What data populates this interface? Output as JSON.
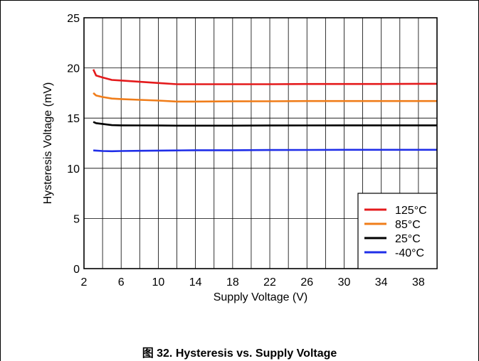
{
  "caption": "图 32. Hysteresis vs. Supply Voltage",
  "chart_data": {
    "type": "line",
    "title": "",
    "xlabel": "Supply Voltage (V)",
    "ylabel": "Hysteresis Voltage (mV)",
    "xlim": [
      2,
      40
    ],
    "ylim": [
      0,
      25
    ],
    "xticks": [
      2,
      6,
      10,
      14,
      18,
      22,
      26,
      30,
      34,
      38
    ],
    "yticks": [
      0,
      5,
      10,
      15,
      20,
      25
    ],
    "grid": true,
    "legend_position": "bottom-right",
    "series": [
      {
        "name": "125°C",
        "color": "#e41a1c",
        "x": [
          3,
          3.3,
          4,
          5,
          6,
          8,
          10,
          12,
          14,
          18,
          22,
          26,
          30,
          34,
          38,
          40
        ],
        "y": [
          19.85,
          19.25,
          19.05,
          18.8,
          18.75,
          18.62,
          18.5,
          18.38,
          18.38,
          18.38,
          18.38,
          18.4,
          18.4,
          18.4,
          18.42,
          18.42
        ]
      },
      {
        "name": "85°C",
        "color": "#f07d1a",
        "x": [
          3,
          3.3,
          4,
          5,
          6,
          8,
          10,
          12,
          14,
          18,
          22,
          26,
          30,
          34,
          38,
          40
        ],
        "y": [
          17.5,
          17.25,
          17.1,
          16.95,
          16.9,
          16.82,
          16.75,
          16.65,
          16.65,
          16.67,
          16.68,
          16.7,
          16.7,
          16.7,
          16.7,
          16.7
        ]
      },
      {
        "name": "25°C",
        "color": "#000000",
        "x": [
          3,
          3.3,
          4,
          5,
          6,
          8,
          10,
          12,
          14,
          18,
          22,
          26,
          30,
          34,
          38,
          40
        ],
        "y": [
          14.62,
          14.5,
          14.42,
          14.3,
          14.28,
          14.27,
          14.26,
          14.25,
          14.25,
          14.25,
          14.26,
          14.27,
          14.28,
          14.28,
          14.28,
          14.28
        ]
      },
      {
        "name": "-40°C",
        "color": "#1f2ee8",
        "x": [
          3,
          3.3,
          4,
          5,
          6,
          8,
          10,
          12,
          14,
          18,
          22,
          26,
          30,
          34,
          38,
          40
        ],
        "y": [
          11.78,
          11.76,
          11.72,
          11.7,
          11.72,
          11.74,
          11.76,
          11.78,
          11.8,
          11.8,
          11.82,
          11.83,
          11.84,
          11.84,
          11.84,
          11.84
        ]
      }
    ]
  }
}
